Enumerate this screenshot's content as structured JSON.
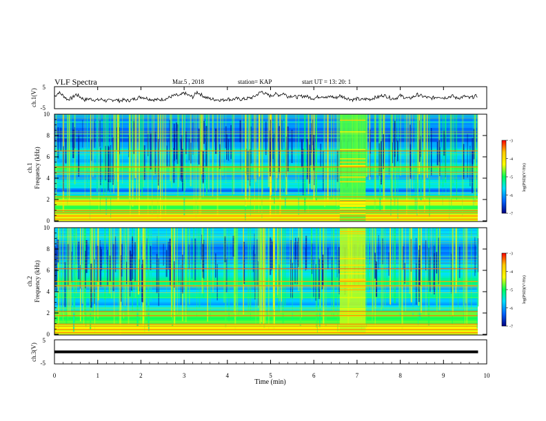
{
  "header": {
    "title": "VLF Spectra",
    "date": "Mar.5 , 2018",
    "station": "station= KAP",
    "start": "start UT = 13: 20: 1"
  },
  "colorbar": {
    "label": "log(PSD)(V²/Hz)",
    "ticks": [
      "-3",
      "-4",
      "-5",
      "-6",
      "-7"
    ],
    "stops": [
      "#ff0000",
      "#ffc800",
      "#ffff00",
      "#00ff5a",
      "#00e0ff",
      "#0064ff",
      "#000080"
    ]
  },
  "chart_data": [
    {
      "type": "line",
      "panel": "ch1_waveform",
      "ylabel": "ch.1(V)",
      "ylim": [
        -5,
        5
      ],
      "yticks": [
        "5",
        "-5"
      ],
      "xlim": [
        0,
        10
      ],
      "series": [
        {
          "x": [
            0,
            0.1,
            0.2,
            0.3,
            0.4,
            0.5,
            0.6,
            0.7,
            0.8,
            0.9,
            1.0,
            1.1,
            1.2,
            1.3,
            1.4,
            1.5,
            1.6,
            1.7,
            1.8,
            1.9,
            2.0,
            2.1,
            2.2,
            2.3,
            2.4,
            2.5,
            2.6,
            2.7,
            2.8,
            2.9,
            3.0,
            3.1,
            3.2,
            3.3,
            3.4,
            3.5,
            3.6,
            3.7,
            3.8,
            3.9,
            4.0,
            4.1,
            4.2,
            4.3,
            4.4,
            4.5,
            4.6,
            4.7,
            4.8,
            4.9,
            5.0,
            5.1,
            5.2,
            5.3,
            5.4,
            5.5,
            5.6,
            5.7,
            5.8,
            5.9,
            6.0,
            6.1,
            6.2,
            6.3,
            6.4,
            6.5,
            6.6,
            6.7,
            6.8,
            6.9,
            7.0,
            7.1,
            7.2,
            7.3,
            7.4,
            7.5,
            7.6,
            7.7,
            7.8,
            7.9,
            8.0,
            8.1,
            8.2,
            8.3,
            8.4,
            8.5,
            8.6,
            8.7,
            8.8,
            8.9,
            9.0,
            9.1,
            9.2,
            9.3,
            9.4,
            9.5,
            9.6,
            9.7,
            9.8
          ],
          "y": [
            0.5,
            2.4,
            1.0,
            -0.8,
            -0.2,
            1.5,
            0.3,
            -1.0,
            -0.5,
            -0.9,
            -1.1,
            -0.7,
            -1.5,
            -1.2,
            -0.8,
            -1.4,
            -1.0,
            -1.3,
            -0.9,
            -0.2,
            0.4,
            0.0,
            -0.6,
            -0.9,
            -1.0,
            -0.7,
            -0.4,
            0.5,
            1.1,
            0.8,
            2.2,
            1.0,
            0.3,
            2.6,
            1.3,
            0.1,
            -0.5,
            -0.8,
            -0.9,
            -1.1,
            -0.5,
            -0.9,
            -0.4,
            -0.7,
            -0.6,
            -0.2,
            0.2,
            1.6,
            2.8,
            1.5,
            0.8,
            1.7,
            1.2,
            2.0,
            0.6,
            0.9,
            0.2,
            0.6,
            0.8,
            0.1,
            -0.3,
            0.4,
            0.8,
            -0.1,
            0.7,
            -0.2,
            0.9,
            0.2,
            -0.4,
            -0.9,
            -0.5,
            -1.0,
            -0.6,
            -0.7,
            0.0,
            0.3,
            1.2,
            0.5,
            -0.4,
            -0.2,
            0.9,
            0.2,
            -0.5,
            0.4,
            1.4,
            0.7,
            0.2,
            -0.3,
            0.1,
            0.6,
            -0.1,
            0.3,
            0.8,
            -0.2,
            0.1,
            0.6,
            -0.2,
            0.4,
            1.0
          ]
        }
      ]
    },
    {
      "type": "heatmap",
      "panel": "ch1_spectrogram",
      "ylabel": "ch.1 Frequency (kHz)",
      "ylim": [
        0,
        10
      ],
      "yticks": [
        "0",
        "2",
        "4",
        "6",
        "8",
        "10"
      ],
      "xlim": [
        0,
        10
      ],
      "z_range": [
        -7,
        -3
      ],
      "background_levels_kHz": [
        [
          0,
          -4.6
        ],
        [
          0.4,
          -4.2
        ],
        [
          1.0,
          -4.8
        ],
        [
          2.0,
          -4.5
        ],
        [
          2.8,
          -6.2
        ],
        [
          3.5,
          -5.3
        ],
        [
          4.2,
          -6.0
        ],
        [
          5.0,
          -5.0
        ],
        [
          5.6,
          -5.8
        ],
        [
          6.5,
          -5.5
        ],
        [
          7.5,
          -6.3
        ],
        [
          9.0,
          -6.1
        ],
        [
          10,
          -5.9
        ]
      ],
      "tonal_lines_kHz": [
        0.2,
        0.5,
        0.8,
        1.0,
        1.9,
        2.3,
        4.6,
        5.1,
        6.6
      ],
      "burst_interval_min": [
        6.6,
        7.2
      ],
      "burst_level": -4.8
    },
    {
      "type": "heatmap",
      "panel": "ch2_spectrogram",
      "ylabel": "ch.2 Frequency (kHz)",
      "ylim": [
        0,
        10
      ],
      "yticks": [
        "0",
        "2",
        "4",
        "6",
        "8",
        "10"
      ],
      "xlim": [
        0,
        10
      ],
      "z_range": [
        -7,
        -3
      ],
      "background_levels_kHz": [
        [
          0,
          -4.6
        ],
        [
          0.4,
          -4.2
        ],
        [
          1.0,
          -4.7
        ],
        [
          2.0,
          -5.0
        ],
        [
          2.9,
          -6.1
        ],
        [
          3.6,
          -5.2
        ],
        [
          4.3,
          -5.9
        ],
        [
          5.0,
          -4.9
        ],
        [
          5.6,
          -5.4
        ],
        [
          6.5,
          -5.8
        ],
        [
          7.5,
          -6.2
        ],
        [
          9.0,
          -5.9
        ],
        [
          10,
          -5.7
        ]
      ],
      "tonal_lines_kHz": [
        0.2,
        0.5,
        0.8,
        1.0,
        1.8,
        2.2,
        4.6,
        5.0,
        6.2
      ],
      "burst_interval_min": [
        6.6,
        7.2
      ],
      "burst_level": -4.5
    },
    {
      "type": "line",
      "panel": "ch3_waveform",
      "ylabel": "ch.3(V)",
      "ylim": [
        -5,
        5
      ],
      "yticks": [
        "5",
        "-5"
      ],
      "xlim": [
        0,
        10
      ],
      "xlabel": "Time (min)",
      "xticks": [
        "0",
        "1",
        "2",
        "3",
        "4",
        "5",
        "6",
        "7",
        "8",
        "9",
        "10"
      ],
      "series": [
        {
          "x": [
            0,
            9.8
          ],
          "y": [
            0,
            0
          ]
        }
      ]
    }
  ]
}
